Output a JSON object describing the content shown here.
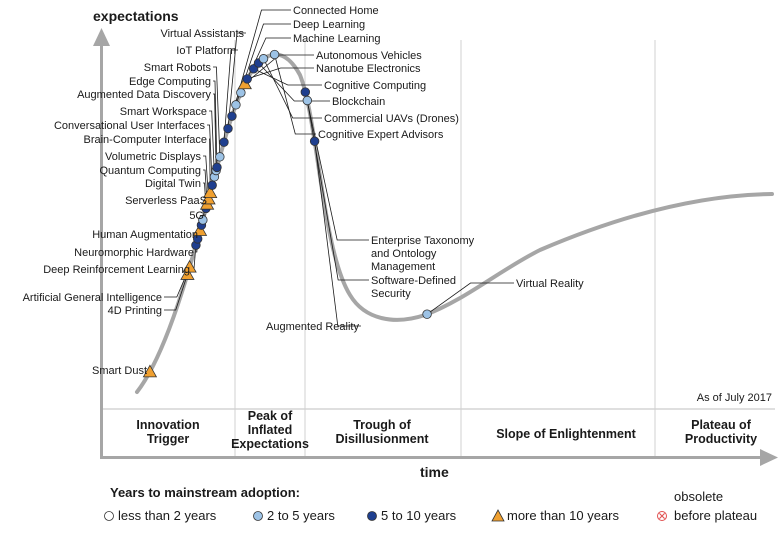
{
  "chart_data": {
    "type": "scatter",
    "ylabel": "expectations",
    "xlabel": "time",
    "note": "As of July 2017",
    "colors": {
      "curve": "#a6a6a6",
      "less_than_2": "#ffffff",
      "two_to_5": "#9dc3e6",
      "five_to_10": "#1f3f8f",
      "more_than_10": "#f0a030",
      "obsolete": "#e05050",
      "dot_stroke": "#333333"
    },
    "phases": [
      {
        "label": [
          "Innovation",
          "Trigger"
        ]
      },
      {
        "label": [
          "Peak of",
          "Inflated",
          "Expectations"
        ]
      },
      {
        "label": [
          "Trough of",
          "Disillusionment"
        ]
      },
      {
        "label": [
          "Slope of Enlightenment"
        ]
      },
      {
        "label": [
          "Plateau of",
          "Productivity"
        ]
      }
    ],
    "legend": {
      "title": "Years to mainstream adoption:",
      "items": [
        {
          "key": "less_than_2",
          "label": "less than 2 years",
          "marker": "circle"
        },
        {
          "key": "two_to_5",
          "label": "2 to 5 years",
          "marker": "circle"
        },
        {
          "key": "five_to_10",
          "label": "5 to 10 years",
          "marker": "circle"
        },
        {
          "key": "more_than_10",
          "label": "more than 10 years",
          "marker": "triangle"
        },
        {
          "key": "obsolete",
          "label": "before plateau",
          "label_top": "obsolete",
          "marker": "cross"
        }
      ]
    },
    "technologies": [
      {
        "name": "Smart Dust",
        "t": 0.022,
        "cat": "more_than_10"
      },
      {
        "name": "4D Printing",
        "t": 0.118,
        "cat": "more_than_10"
      },
      {
        "name": "Artificial General Intelligence",
        "t": 0.125,
        "cat": "more_than_10"
      },
      {
        "name": "Deep Reinforcement Learning",
        "t": 0.146,
        "cat": "five_to_10"
      },
      {
        "name": "Neuromorphic Hardware",
        "t": 0.152,
        "cat": "five_to_10"
      },
      {
        "name": "Human Augmentation",
        "t": 0.16,
        "cat": "more_than_10"
      },
      {
        "name": "5G",
        "t": 0.165,
        "cat": "five_to_10"
      },
      {
        "name": "Serverless PaaS",
        "t": 0.17,
        "cat": "two_to_5"
      },
      {
        "name": "Digital Twin",
        "t": 0.181,
        "cat": "five_to_10"
      },
      {
        "name": "Quantum Computing",
        "t": 0.185,
        "cat": "more_than_10"
      },
      {
        "name": "Volumetric Displays",
        "t": 0.19,
        "cat": "more_than_10"
      },
      {
        "name": "Brain-Computer Interface",
        "t": 0.196,
        "cat": "more_than_10"
      },
      {
        "name": "Conversational User Interfaces",
        "t": 0.203,
        "cat": "five_to_10"
      },
      {
        "name": "Smart Workspace",
        "t": 0.211,
        "cat": "two_to_5"
      },
      {
        "name": "Augmented Data Discovery",
        "t": 0.217,
        "cat": "two_to_5"
      },
      {
        "name": "Edge Computing",
        "t": 0.22,
        "cat": "five_to_10"
      },
      {
        "name": "Smart Robots",
        "t": 0.23,
        "cat": "two_to_5"
      },
      {
        "name": "IoT Platform",
        "t": 0.244,
        "cat": "five_to_10"
      },
      {
        "name": "Virtual Assistants",
        "t": 0.257,
        "cat": "five_to_10"
      },
      {
        "name": "Connected Home",
        "t": 0.269,
        "cat": "five_to_10"
      },
      {
        "name": "Deep Learning",
        "t": 0.28,
        "cat": "two_to_5"
      },
      {
        "name": "Machine Learning",
        "t": 0.292,
        "cat": "two_to_5"
      },
      {
        "name": "Autonomous Vehicles",
        "t": 0.301,
        "cat": "more_than_10"
      },
      {
        "name": "Nanotube Electronics",
        "t": 0.306,
        "cat": "five_to_10"
      },
      {
        "name": "Cognitive Computing",
        "t": 0.317,
        "cat": "five_to_10"
      },
      {
        "name": "Blockchain",
        "t": 0.324,
        "cat": "five_to_10"
      },
      {
        "name": "Commercial UAVs (Drones)",
        "t": 0.33,
        "cat": "two_to_5"
      },
      {
        "name": "Cognitive Expert Advisors",
        "t": 0.341,
        "cat": "two_to_5"
      },
      {
        "name": "Enterprise Taxonomy and Ontology Management",
        "t": 0.389,
        "cat": "five_to_10",
        "label_lines": [
          "Enterprise Taxonomy",
          "and Ontology",
          "Management"
        ]
      },
      {
        "name": "Software-Defined Security",
        "t": 0.397,
        "cat": "two_to_5",
        "label_lines": [
          "Software-Defined",
          "Security"
        ]
      },
      {
        "name": "Augmented Reality",
        "t": 0.435,
        "cat": "five_to_10"
      },
      {
        "name": "Virtual Reality",
        "t": 0.66,
        "cat": "two_to_5"
      }
    ]
  }
}
